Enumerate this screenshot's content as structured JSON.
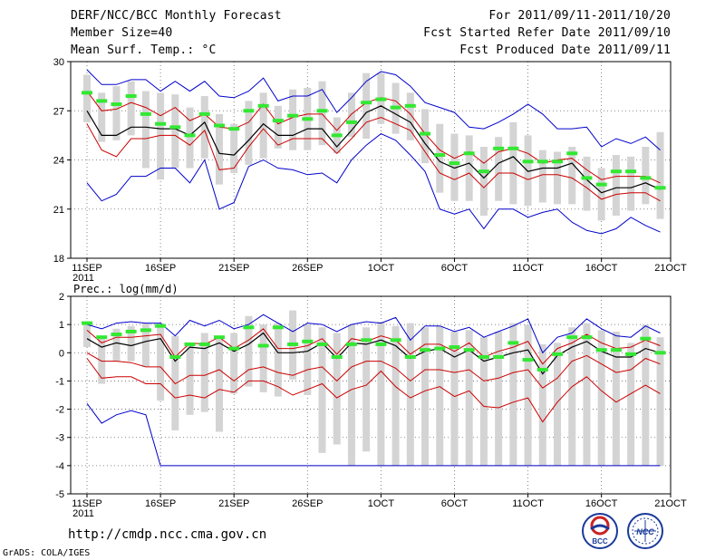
{
  "header": {
    "title": "DERF/NCC/BCC Monthly Forecast",
    "member_size": "Member Size=40",
    "variable": "Mean Surf. Temp.: °C",
    "period": "For 2011/09/11-2011/10/20",
    "started_date": "Fcst Started Refer Date 2011/09/10",
    "produced_date": "Fcst Produced Date 2011/09/11"
  },
  "footer": {
    "url": "http://cmdp.ncc.cma.gov.cn",
    "credit": "GrADS: COLA/IGES",
    "logo_bcc": "BCC",
    "logo_ncc": "NCC"
  },
  "colors": {
    "max_min": "#0000cc",
    "quartile": "#cc0000",
    "median": "#000000",
    "box": "#d4d4d4",
    "observed": "#33e833",
    "grid": "#666666"
  },
  "chart_data": [
    {
      "type": "line",
      "name": "temperature",
      "label": "",
      "ylim": [
        18,
        30
      ],
      "yticks": [
        18,
        21,
        24,
        27,
        30
      ],
      "xlim": [
        1,
        40
      ],
      "xticks": [
        {
          "day": 1,
          "label": "11SEP",
          "sub": "2011"
        },
        {
          "day": 6,
          "label": "16SEP"
        },
        {
          "day": 11,
          "label": "21SEP"
        },
        {
          "day": 16,
          "label": "26SEP"
        },
        {
          "day": 21,
          "label": "1OCT"
        },
        {
          "day": 26,
          "label": "6OCT"
        },
        {
          "day": 31,
          "label": "11OCT"
        },
        {
          "day": 36,
          "label": "16OCT"
        },
        {
          "day": 41,
          "label": "21OCT"
        }
      ],
      "x": [
        1,
        2,
        3,
        4,
        5,
        6,
        7,
        8,
        9,
        10,
        11,
        12,
        13,
        14,
        15,
        16,
        17,
        18,
        19,
        20,
        21,
        22,
        23,
        24,
        25,
        26,
        27,
        28,
        29,
        30,
        31,
        32,
        33,
        34,
        35,
        36,
        37,
        38,
        39,
        40
      ],
      "series": [
        {
          "name": "max",
          "values": [
            29.5,
            28.6,
            28.6,
            28.9,
            28.9,
            28.2,
            28.8,
            28.2,
            28.8,
            27.9,
            27.8,
            28.2,
            29.0,
            27.6,
            27.9,
            27.9,
            28.3,
            26.9,
            27.8,
            28.8,
            29.4,
            29.2,
            28.5,
            27.5,
            27.2,
            26.9,
            26.0,
            25.9,
            26.3,
            26.8,
            27.4,
            26.8,
            25.9,
            25.9,
            26.0,
            24.8,
            25.3,
            25.0,
            25.4,
            24.6
          ]
        },
        {
          "name": "upper_quartile",
          "values": [
            28.2,
            27.0,
            27.1,
            27.5,
            27.2,
            26.7,
            27.2,
            26.4,
            26.8,
            26.0,
            25.9,
            26.3,
            27.4,
            26.2,
            26.6,
            26.8,
            26.8,
            25.8,
            26.8,
            27.5,
            27.8,
            27.6,
            26.8,
            25.6,
            24.6,
            24.1,
            24.5,
            23.8,
            24.5,
            24.7,
            24.4,
            23.8,
            24.0,
            24.1,
            23.4,
            22.8,
            23.0,
            23.0,
            23.0,
            22.6
          ]
        },
        {
          "name": "median",
          "values": [
            27.0,
            25.5,
            25.5,
            26.0,
            26.0,
            25.9,
            25.9,
            25.5,
            26.3,
            24.4,
            24.3,
            25.2,
            26.2,
            25.5,
            25.5,
            25.9,
            25.9,
            24.8,
            25.8,
            26.9,
            27.3,
            26.8,
            26.3,
            25.0,
            23.9,
            23.5,
            23.8,
            22.9,
            23.8,
            24.2,
            23.3,
            23.5,
            23.5,
            23.8,
            22.8,
            22.0,
            22.3,
            22.3,
            22.6,
            22.2
          ]
        },
        {
          "name": "lower_quartile",
          "values": [
            26.2,
            24.6,
            24.2,
            25.3,
            25.3,
            25.5,
            25.5,
            24.9,
            25.8,
            23.4,
            23.5,
            24.8,
            25.9,
            24.9,
            25.3,
            25.3,
            25.3,
            24.4,
            25.3,
            26.3,
            26.6,
            26.2,
            25.8,
            24.5,
            23.2,
            22.8,
            23.2,
            22.3,
            23.2,
            23.2,
            22.8,
            23.1,
            23.1,
            22.9,
            22.3,
            21.6,
            21.9,
            22.0,
            22.0,
            21.5
          ]
        },
        {
          "name": "min",
          "values": [
            22.6,
            21.5,
            21.9,
            23.0,
            23.0,
            23.5,
            23.5,
            22.6,
            24.0,
            21.0,
            21.4,
            23.6,
            24.0,
            23.5,
            23.4,
            23.1,
            23.2,
            22.6,
            24.0,
            24.9,
            25.6,
            25.2,
            24.3,
            23.3,
            21.0,
            20.7,
            21.0,
            19.8,
            21.0,
            21.0,
            20.5,
            20.8,
            21.0,
            20.2,
            19.7,
            19.5,
            19.8,
            20.5,
            20.0,
            19.6
          ]
        },
        {
          "name": "observed",
          "values": [
            28.1,
            27.6,
            27.4,
            27.9,
            26.8,
            26.2,
            26.0,
            25.5,
            26.8,
            26.1,
            25.9,
            27.0,
            27.3,
            26.4,
            26.7,
            26.5,
            27.0,
            25.5,
            26.3,
            27.5,
            27.7,
            27.2,
            27.3,
            25.6,
            24.3,
            23.8,
            24.4,
            23.3,
            24.7,
            24.7,
            23.9,
            23.9,
            23.9,
            24.4,
            22.9,
            22.5,
            23.3,
            23.3,
            22.9,
            22.3
          ]
        }
      ],
      "boxes": [
        {
          "low": 26.3,
          "high": 29.2
        },
        {
          "low": 25.1,
          "high": 28.1
        },
        {
          "low": 25.2,
          "high": 28.5
        },
        {
          "low": 25.5,
          "high": 28.8
        },
        {
          "low": 23.5,
          "high": 28.2
        },
        {
          "low": 22.8,
          "high": 28.1
        },
        {
          "low": 23.5,
          "high": 28.0
        },
        {
          "low": 23.5,
          "high": 27.2
        },
        {
          "low": 24.1,
          "high": 27.9
        },
        {
          "low": 22.5,
          "high": 26.8
        },
        {
          "low": 23.2,
          "high": 26.2
        },
        {
          "low": 23.7,
          "high": 27.6
        },
        {
          "low": 24.1,
          "high": 28.1
        },
        {
          "low": 24.7,
          "high": 27.3
        },
        {
          "low": 24.6,
          "high": 28.3
        },
        {
          "low": 24.6,
          "high": 28.4
        },
        {
          "low": 24.9,
          "high": 28.8
        },
        {
          "low": 24.4,
          "high": 26.6
        },
        {
          "low": 25.4,
          "high": 28.1
        },
        {
          "low": 25.3,
          "high": 29.3
        },
        {
          "low": 26.2,
          "high": 29.3
        },
        {
          "low": 25.6,
          "high": 28.7
        },
        {
          "low": 25.2,
          "high": 28.1
        },
        {
          "low": 23.8,
          "high": 27.1
        },
        {
          "low": 22.0,
          "high": 26.2
        },
        {
          "low": 21.5,
          "high": 25.6
        },
        {
          "low": 21.5,
          "high": 25.5
        },
        {
          "low": 20.6,
          "high": 24.8
        },
        {
          "low": 21.5,
          "high": 25.4
        },
        {
          "low": 21.3,
          "high": 26.3
        },
        {
          "low": 21.2,
          "high": 25.5
        },
        {
          "low": 21.4,
          "high": 24.6
        },
        {
          "low": 21.3,
          "high": 24.5
        },
        {
          "low": 21.3,
          "high": 24.8
        },
        {
          "low": 20.9,
          "high": 24.2
        },
        {
          "low": 20.3,
          "high": 23.5
        },
        {
          "low": 20.6,
          "high": 24.3
        },
        {
          "low": 20.9,
          "high": 24.2
        },
        {
          "low": 21.3,
          "high": 24.8
        },
        {
          "low": 20.4,
          "high": 25.7
        }
      ]
    },
    {
      "type": "line",
      "name": "precipitation",
      "label": "Prec.: log(mm/d)",
      "ylim": [
        -5,
        2
      ],
      "yticks": [
        -5,
        -4,
        -3,
        -2,
        -1,
        0,
        1,
        2
      ],
      "xlim": [
        1,
        40
      ],
      "xticks": [
        {
          "day": 1,
          "label": "11SEP",
          "sub": "2011"
        },
        {
          "day": 6,
          "label": "16SEP"
        },
        {
          "day": 11,
          "label": "21SEP"
        },
        {
          "day": 16,
          "label": "26SEP"
        },
        {
          "day": 21,
          "label": "1OCT"
        },
        {
          "day": 26,
          "label": "6OCT"
        },
        {
          "day": 31,
          "label": "11OCT"
        },
        {
          "day": 36,
          "label": "16OCT"
        },
        {
          "day": 41,
          "label": "21OCT"
        }
      ],
      "x": [
        1,
        2,
        3,
        4,
        5,
        6,
        7,
        8,
        9,
        10,
        11,
        12,
        13,
        14,
        15,
        16,
        17,
        18,
        19,
        20,
        21,
        22,
        23,
        24,
        25,
        26,
        27,
        28,
        29,
        30,
        31,
        32,
        33,
        34,
        35,
        36,
        37,
        38,
        39,
        40
      ],
      "series": [
        {
          "name": "max",
          "values": [
            1.0,
            0.85,
            1.05,
            1.1,
            1.05,
            1.05,
            0.6,
            1.15,
            0.95,
            1.15,
            0.85,
            1.0,
            1.35,
            1.05,
            0.75,
            1.05,
            1.0,
            0.75,
            1.0,
            1.1,
            1.05,
            1.25,
            0.45,
            0.95,
            0.95,
            0.75,
            0.9,
            0.55,
            0.75,
            0.95,
            1.2,
            0.0,
            0.55,
            0.7,
            1.2,
            0.85,
            0.6,
            0.55,
            0.95,
            0.7
          ]
        },
        {
          "name": "upper_quartile",
          "values": [
            0.8,
            0.35,
            0.55,
            0.55,
            0.6,
            0.65,
            -0.15,
            0.35,
            0.3,
            0.55,
            0.15,
            0.45,
            0.85,
            0.15,
            0.15,
            0.25,
            0.5,
            -0.05,
            0.5,
            0.4,
            0.6,
            0.45,
            -0.05,
            0.3,
            0.3,
            0.05,
            0.35,
            -0.15,
            0.05,
            0.2,
            0.4,
            -0.4,
            0.15,
            0.35,
            0.65,
            0.35,
            0.15,
            0.2,
            0.45,
            0.25
          ]
        },
        {
          "name": "median",
          "values": [
            0.5,
            0.2,
            0.35,
            0.25,
            0.4,
            0.5,
            -0.3,
            0.2,
            0.15,
            0.35,
            0.05,
            0.3,
            0.7,
            0.0,
            0.0,
            0.05,
            0.35,
            -0.2,
            0.35,
            0.3,
            0.45,
            0.25,
            -0.2,
            0.05,
            0.15,
            -0.15,
            0.1,
            -0.3,
            -0.15,
            0.0,
            0.1,
            -0.75,
            -0.1,
            0.2,
            0.4,
            0.05,
            -0.15,
            -0.15,
            0.15,
            0.0
          ]
        },
        {
          "name": "lower_quartile",
          "values": [
            0.0,
            -0.3,
            -0.3,
            -0.35,
            -0.5,
            -0.5,
            -1.1,
            -0.8,
            -0.8,
            -0.6,
            -1.0,
            -0.6,
            -0.5,
            -0.7,
            -0.8,
            -0.6,
            -0.5,
            -1.0,
            -0.5,
            -0.3,
            -0.3,
            -0.55,
            -1.0,
            -0.6,
            -0.6,
            -0.7,
            -0.6,
            -1.0,
            -0.9,
            -0.7,
            -0.6,
            -1.25,
            -0.9,
            -0.3,
            -0.1,
            -0.4,
            -0.7,
            -0.6,
            -0.2,
            -0.4
          ]
        },
        {
          "name": "min",
          "values": [
            -1.8,
            -2.5,
            -2.2,
            -2.05,
            -2.2,
            -4.0,
            -4.0,
            -4.0,
            -4.0,
            -4.0,
            -4.0,
            -4.0,
            -4.0,
            -4.0,
            -4.0,
            -4.0,
            -4.0,
            -4.0,
            -4.0,
            -4.0,
            -4.0,
            -4.0,
            -4.0,
            -4.0,
            -4.0,
            -4.0,
            -4.0,
            -4.0,
            -4.0,
            -4.0,
            -4.0,
            -4.0,
            -4.0,
            -4.0,
            -4.0,
            -4.0,
            -4.0,
            -4.0,
            -4.0,
            -4.0
          ]
        },
        {
          "name": "quartile_low2",
          "values": [
            -0.2,
            -0.9,
            -0.85,
            -0.85,
            -1.1,
            -1.1,
            -1.6,
            -1.5,
            -1.6,
            -1.3,
            -1.4,
            -1.0,
            -1.0,
            -1.2,
            -1.5,
            -1.3,
            -1.1,
            -1.6,
            -1.3,
            -1.15,
            -0.65,
            -1.2,
            -1.6,
            -1.35,
            -1.2,
            -1.55,
            -1.35,
            -1.9,
            -1.95,
            -1.75,
            -1.6,
            -2.45,
            -1.75,
            -1.2,
            -0.85,
            -1.35,
            -1.75,
            -1.45,
            -1.15,
            -1.45
          ]
        },
        {
          "name": "observed",
          "values": [
            1.05,
            0.55,
            0.65,
            0.75,
            0.8,
            0.95,
            -0.15,
            0.3,
            0.3,
            0.55,
            0.15,
            0.9,
            0.25,
            0.9,
            0.3,
            0.4,
            0.3,
            -0.15,
            0.3,
            0.45,
            0.3,
            0.45,
            -0.15,
            0.1,
            0.15,
            0.2,
            0.1,
            -0.15,
            -0.15,
            0.35,
            -0.25,
            -0.6,
            -0.05,
            0.55,
            0.55,
            0.1,
            0.1,
            -0.05,
            0.5,
            0.0
          ]
        }
      ],
      "boxes": [
        {
          "low": 0.2,
          "high": 1.1
        },
        {
          "low": -1.1,
          "high": 0.55
        },
        {
          "low": -0.3,
          "high": 0.85
        },
        {
          "low": -0.3,
          "high": 0.95
        },
        {
          "low": -0.5,
          "high": 1.05
        },
        {
          "low": -1.7,
          "high": 1.05
        },
        {
          "low": -2.75,
          "high": 0.6
        },
        {
          "low": -2.2,
          "high": 0.35
        },
        {
          "low": -2.1,
          "high": 0.7
        },
        {
          "low": -2.8,
          "high": 0.5
        },
        {
          "low": -1.45,
          "high": 0.7
        },
        {
          "low": -1.2,
          "high": 1.3
        },
        {
          "low": -1.4,
          "high": 1.0
        },
        {
          "low": -1.55,
          "high": 1.05
        },
        {
          "low": -0.95,
          "high": 1.5
        },
        {
          "low": -1.5,
          "high": 1.0
        },
        {
          "low": -3.55,
          "high": 0.9
        },
        {
          "low": -3.25,
          "high": 0.7
        },
        {
          "low": -4.0,
          "high": 1.0
        },
        {
          "low": -3.5,
          "high": 0.9
        },
        {
          "low": -4.0,
          "high": 1.1
        },
        {
          "low": -4.0,
          "high": 0.95
        },
        {
          "low": -4.0,
          "high": 1.05
        },
        {
          "low": -4.0,
          "high": 0.9
        },
        {
          "low": -4.0,
          "high": 0.95
        },
        {
          "low": -4.0,
          "high": 0.75
        },
        {
          "low": -4.0,
          "high": 0.8
        },
        {
          "low": -4.0,
          "high": 0.55
        },
        {
          "low": -4.0,
          "high": 0.75
        },
        {
          "low": -4.0,
          "high": 1.05
        },
        {
          "low": -4.0,
          "high": 1.0
        },
        {
          "low": -4.0,
          "high": 0.3
        },
        {
          "low": -4.0,
          "high": 0.35
        },
        {
          "low": -4.0,
          "high": 0.9
        },
        {
          "low": -4.0,
          "high": 1.05
        },
        {
          "low": -4.0,
          "high": 0.8
        },
        {
          "low": -4.0,
          "high": 0.75
        },
        {
          "low": -4.0,
          "high": 0.35
        },
        {
          "low": -4.0,
          "high": 1.0
        },
        {
          "low": -4.0,
          "high": 0.55
        }
      ]
    }
  ]
}
